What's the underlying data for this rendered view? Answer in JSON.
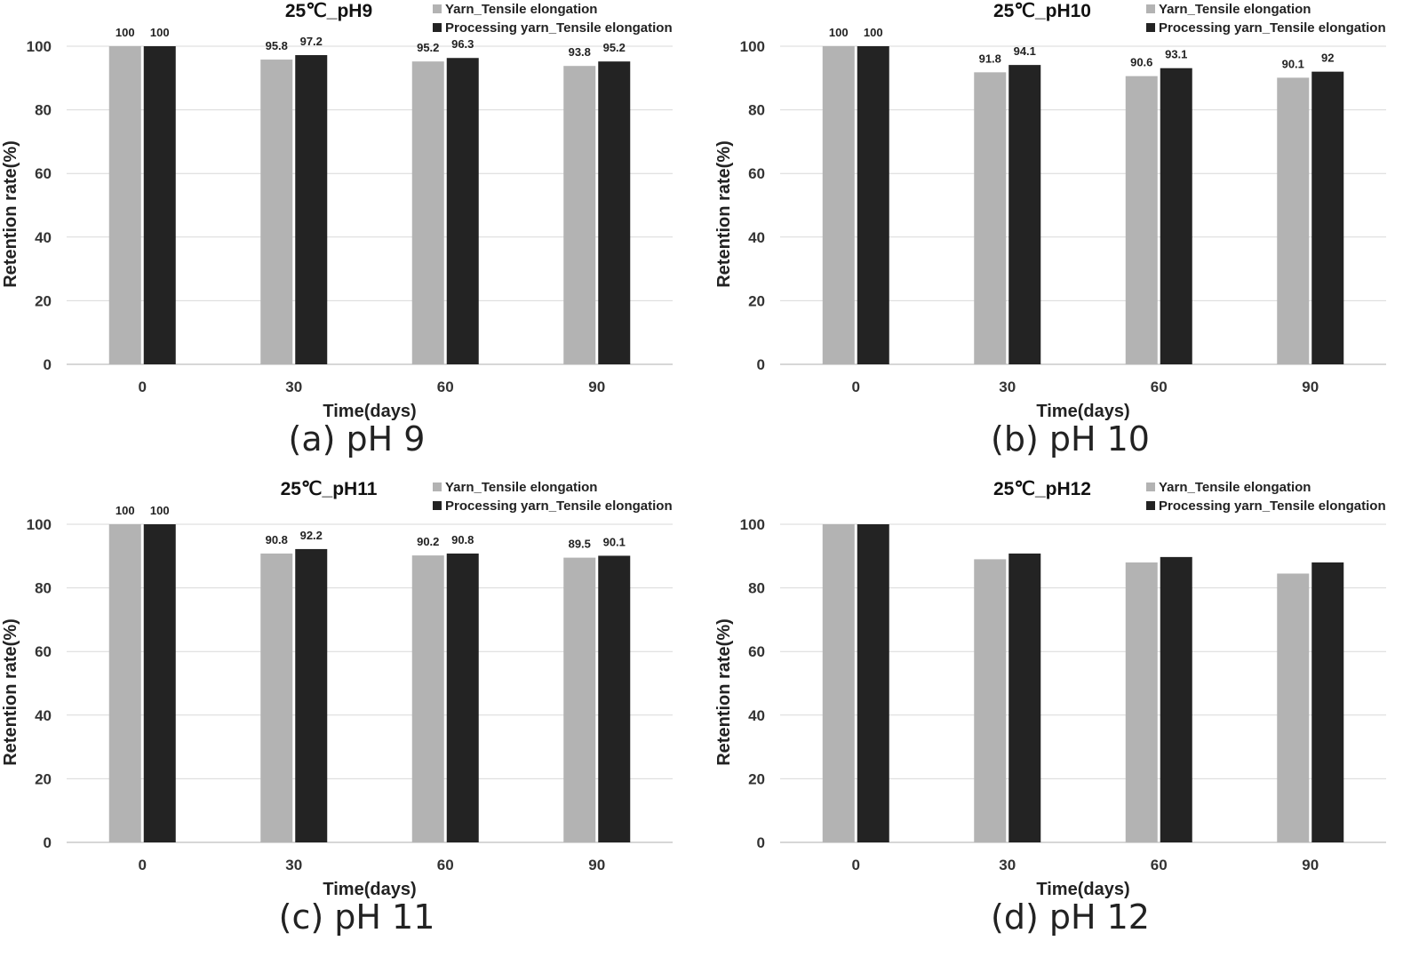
{
  "chart_data": [
    {
      "type": "bar",
      "title": "25℃_pH9",
      "caption": "(a) pH 9",
      "xlabel": "Time(days)",
      "ylabel": "Retention rate(%)",
      "categories": [
        "0",
        "30",
        "60",
        "90"
      ],
      "y_ticks": [
        "0",
        "20",
        "40",
        "60",
        "80",
        "100"
      ],
      "ylim": [
        0,
        100
      ],
      "grid": true,
      "legend_position": "top-right",
      "show_data_labels": true,
      "series": [
        {
          "name": "Yarn_Tensile elongation",
          "color": "#b3b3b3",
          "values": [
            100,
            95.8,
            95.2,
            93.8
          ],
          "labels": [
            "100",
            "95.8",
            "95.2",
            "93.8"
          ]
        },
        {
          "name": "Processing yarn_Tensile elongation",
          "color": "#232323",
          "values": [
            100,
            97.2,
            96.3,
            95.2
          ],
          "labels": [
            "100",
            "97.2",
            "96.3",
            "95.2"
          ]
        }
      ]
    },
    {
      "type": "bar",
      "title": "25℃_pH10",
      "caption": "(b) pH 10",
      "xlabel": "Time(days)",
      "ylabel": "Retention rate(%)",
      "categories": [
        "0",
        "30",
        "60",
        "90"
      ],
      "y_ticks": [
        "0",
        "20",
        "40",
        "60",
        "80",
        "100"
      ],
      "ylim": [
        0,
        100
      ],
      "grid": true,
      "legend_position": "top-right",
      "show_data_labels": true,
      "series": [
        {
          "name": "Yarn_Tensile elongation",
          "color": "#b3b3b3",
          "values": [
            100,
            91.8,
            90.6,
            90.1
          ],
          "labels": [
            "100",
            "91.8",
            "90.6",
            "90.1"
          ]
        },
        {
          "name": "Processing yarn_Tensile elongation",
          "color": "#232323",
          "values": [
            100,
            94.1,
            93.1,
            92
          ],
          "labels": [
            "100",
            "94.1",
            "93.1",
            "92"
          ]
        }
      ]
    },
    {
      "type": "bar",
      "title": "25℃_pH11",
      "caption": "(c) pH 11",
      "xlabel": "Time(days)",
      "ylabel": "Retention rate(%)",
      "categories": [
        "0",
        "30",
        "60",
        "90"
      ],
      "y_ticks": [
        "0",
        "20",
        "40",
        "60",
        "80",
        "100"
      ],
      "ylim": [
        0,
        100
      ],
      "grid": true,
      "legend_position": "top-right",
      "show_data_labels": true,
      "series": [
        {
          "name": "Yarn_Tensile elongation",
          "color": "#b3b3b3",
          "values": [
            100,
            90.8,
            90.2,
            89.5
          ],
          "labels": [
            "100",
            "90.8",
            "90.2",
            "89.5"
          ]
        },
        {
          "name": "Processing yarn_Tensile elongation",
          "color": "#232323",
          "values": [
            100,
            92.2,
            90.8,
            90.1
          ],
          "labels": [
            "100",
            "92.2",
            "90.8",
            "90.1"
          ]
        }
      ]
    },
    {
      "type": "bar",
      "title": "25℃_pH12",
      "caption": "(d) pH 12",
      "xlabel": "Time(days)",
      "ylabel": "Retention rate(%)",
      "categories": [
        "0",
        "30",
        "60",
        "90"
      ],
      "y_ticks": [
        "0",
        "20",
        "40",
        "60",
        "80",
        "100"
      ],
      "ylim": [
        0,
        100
      ],
      "grid": true,
      "legend_position": "top-right",
      "show_data_labels": false,
      "series": [
        {
          "name": "Yarn_Tensile elongation",
          "color": "#b3b3b3",
          "values": [
            100,
            89,
            88,
            84.5
          ]
        },
        {
          "name": "Processing yarn_Tensile elongation",
          "color": "#232323",
          "values": [
            100,
            90.8,
            89.7,
            88
          ]
        }
      ]
    }
  ]
}
